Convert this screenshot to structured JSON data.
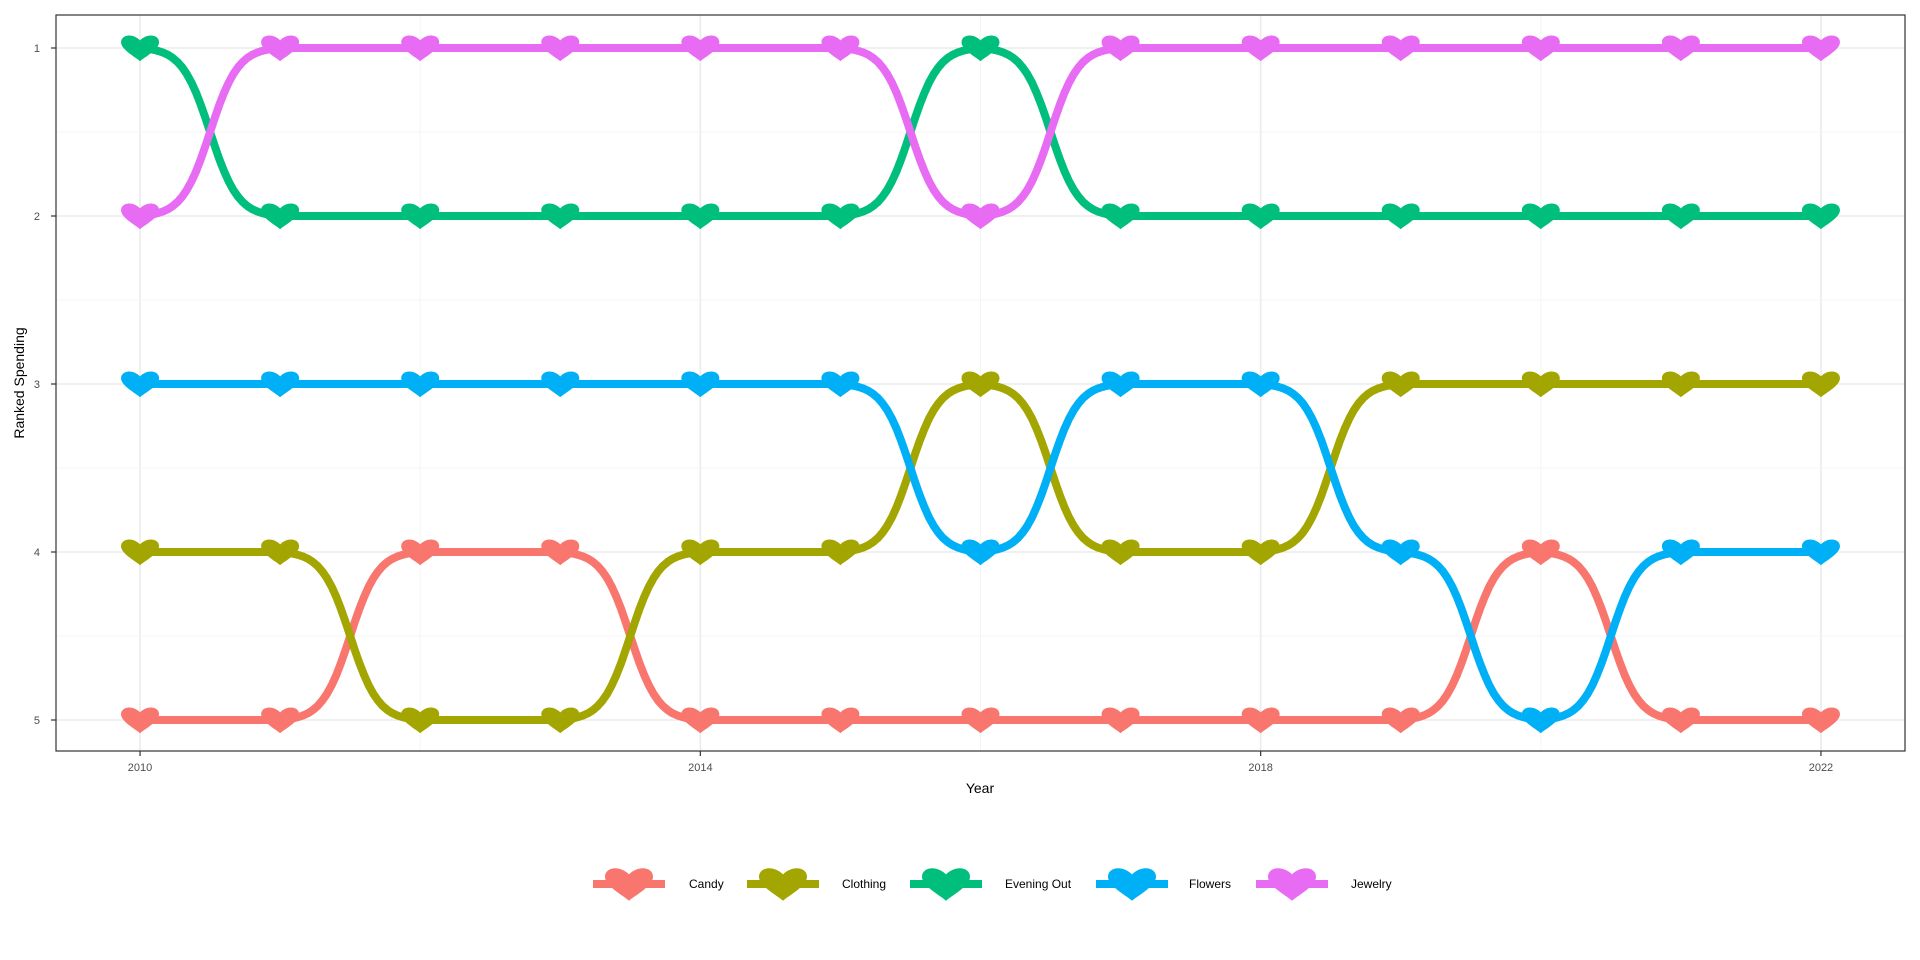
{
  "chart_data": {
    "type": "line",
    "subtype": "bump",
    "title": "",
    "xlabel": "Year",
    "ylabel": "Ranked Spending",
    "x": [
      2010,
      2011,
      2012,
      2013,
      2014,
      2015,
      2016,
      2017,
      2018,
      2019,
      2020,
      2021,
      2022
    ],
    "xlim": [
      2009.4,
      2022.6
    ],
    "x_ticks": [
      2010,
      2014,
      2018,
      2022
    ],
    "x_tick_labels": [
      "2010",
      "2014",
      "2018",
      "2022"
    ],
    "ylim": [
      1,
      5
    ],
    "y_reversed": true,
    "y_ticks": [
      1,
      2,
      3,
      4,
      5
    ],
    "y_tick_labels": [
      "1",
      "2",
      "3",
      "4",
      "5"
    ],
    "grid": true,
    "marker": "heart",
    "legend_position": "bottom",
    "series": [
      {
        "name": "Candy",
        "color": "#F8766D",
        "values": [
          5,
          5,
          4,
          4,
          5,
          5,
          5,
          5,
          5,
          5,
          4,
          5,
          5
        ]
      },
      {
        "name": "Clothing",
        "color": "#A3A500",
        "values": [
          4,
          4,
          5,
          5,
          4,
          4,
          3,
          4,
          4,
          3,
          3,
          3,
          3
        ]
      },
      {
        "name": "Evening Out",
        "color": "#00BF7D",
        "values": [
          1,
          2,
          2,
          2,
          2,
          2,
          1,
          2,
          2,
          2,
          2,
          2,
          2
        ]
      },
      {
        "name": "Flowers",
        "color": "#00B0F6",
        "values": [
          3,
          3,
          3,
          3,
          3,
          3,
          4,
          3,
          3,
          4,
          5,
          4,
          4
        ]
      },
      {
        "name": "Jewelry",
        "color": "#E76BF3",
        "values": [
          2,
          1,
          1,
          1,
          1,
          1,
          2,
          1,
          1,
          1,
          1,
          1,
          1
        ]
      }
    ]
  }
}
